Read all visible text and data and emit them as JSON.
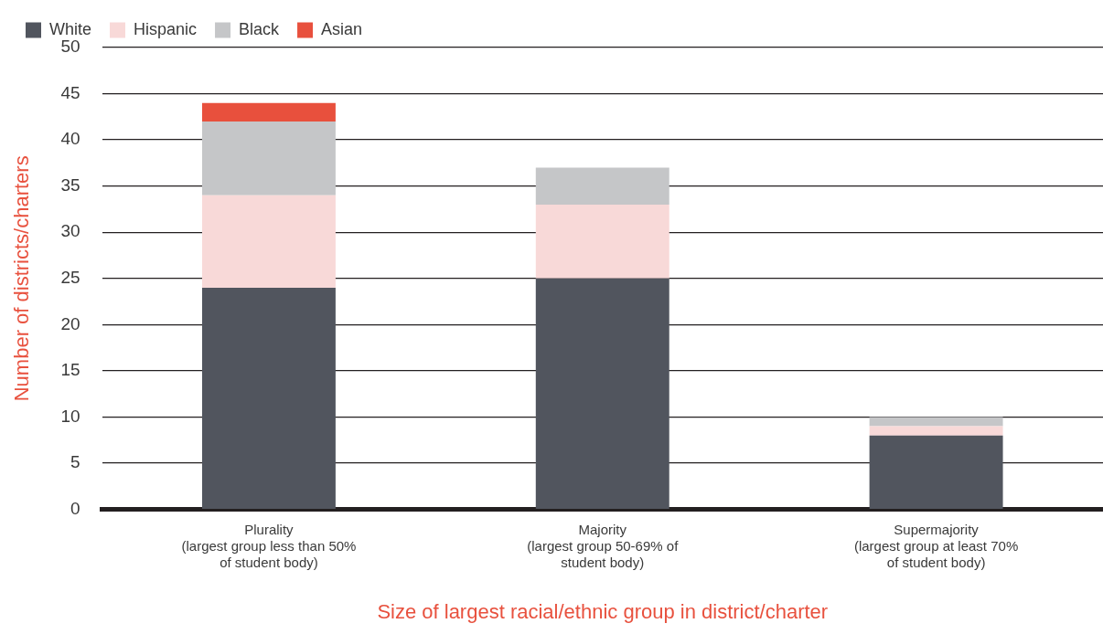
{
  "chart_data": {
    "type": "bar",
    "stacked": true,
    "categories": [
      "Plurality\n(largest group less than 50%\nof student body)",
      "Majority\n(largest group 50-69% of\nstudent body)",
      "Supermajority\n(largest group at least 70%\nof student body)"
    ],
    "series": [
      {
        "name": "White",
        "color": "#51555e",
        "values": [
          24,
          25,
          8
        ]
      },
      {
        "name": "Hispanic",
        "color": "#f8d9d8",
        "values": [
          10,
          8,
          1
        ]
      },
      {
        "name": "Black",
        "color": "#c5c6c8",
        "values": [
          8,
          4,
          1
        ]
      },
      {
        "name": "Asian",
        "color": "#e8503d",
        "values": [
          2,
          0,
          0
        ]
      }
    ],
    "ylim": [
      0,
      50
    ],
    "yticks": [
      0,
      5,
      10,
      15,
      20,
      25,
      30,
      35,
      40,
      45,
      50
    ],
    "ylabel": "Number of districts/charters",
    "xlabel": "Size of largest racial/ethnic group in district/charter",
    "grid": "y",
    "legend": "top left"
  }
}
